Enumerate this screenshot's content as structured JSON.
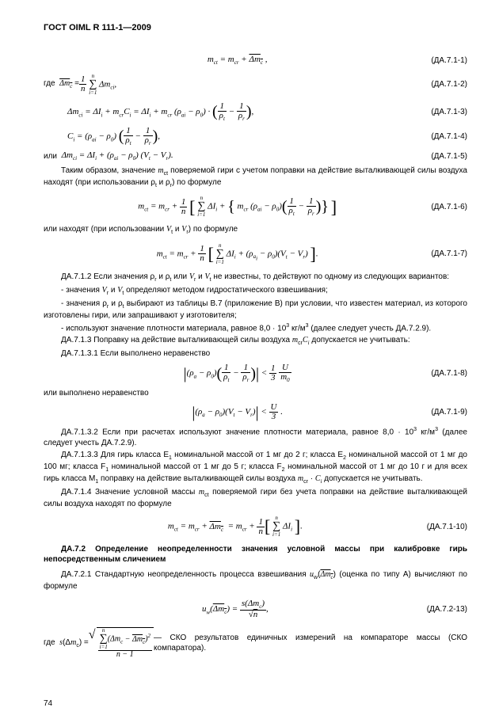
{
  "header": "ГОСТ OIML R 111-1—2009",
  "footer": "74",
  "eq": {
    "e1": {
      "f": "m<sub>ct</sub> = m<sub>cr</sub> + <span class='ovl'>Δm<sub>c</sub></span> ,",
      "t": "(ДА.7.1-1)"
    },
    "e2": {
      "lead": "где&nbsp;&nbsp;<span class='it'><span class='ovl'>Δm<sub>c</sub></span></span> = ",
      "f": "<span class='frac'><span class='n'>1</span><span class='d'>n</span></span> <span class='sumfrac'><span class='top'>n</span><span class='mid'>∑</span><span class='bot'>i=1</span></span> Δm<sub>ci</sub>,",
      "t": "(ДА.7.1-2)"
    },
    "e3": {
      "f": "Δm<sub>ci</sub> = ΔI<sub>i</sub> + m<sub>cr</sub>C<sub>i</sub> = ΔI<sub>i</sub> + m<sub>cr</sub> (ρ<sub>ai</sub> − ρ<sub>0</sub>) · <span class='big'>(</span><span class='frac'><span class='n'>1</span><span class='d'>ρ<sub>t</sub></span></span> − <span class='frac'><span class='n'>1</span><span class='d'>ρ<sub>r</sub></span></span><span class='big'>)</span>,",
      "t": "(ДА.7.1-3)"
    },
    "e4": {
      "f": "C<sub>i</sub> = (ρ<sub>ai</sub> − ρ<sub>0</sub>) <span class='big'>(</span><span class='frac'><span class='n'>1</span><span class='d'>ρ<sub>t</sub></span></span> − <span class='frac'><span class='n'>1</span><span class='d'>ρ<sub>r</sub></span></span><span class='big'>)</span>,",
      "t": "(ДА.7.1-4)"
    },
    "e5": {
      "lead": "или&nbsp;&nbsp;",
      "f": "Δm<sub>ci</sub> = ΔI<sub>i</sub> + (ρ<sub>ai</sub> − ρ<sub>0</sub>) (V<sub>t</sub> − V<sub>r</sub>).",
      "t": "(ДА.7.1-5)"
    },
    "e6": {
      "f": "m<sub>ct</sub> = m<sub>cr</sub> + <span class='frac'><span class='n'>1</span><span class='d'>n</span></span> <span class='brk-l'>[</span> <span class='sumfrac'><span class='top'>n</span><span class='mid'>∑</span><span class='bot'>i=1</span></span> ΔI<sub>i</sub> + <span class='big'>{</span> m<sub>cr</sub> (ρ<sub>ai</sub> − ρ<sub>0</sub>)<span class='big'>(</span><span class='frac'><span class='n'>1</span><span class='d'>ρ<sub>t</sub></span></span> − <span class='frac'><span class='n'>1</span><span class='d'>ρ<sub>r</sub></span></span><span class='big'>)</span><span class='big'>}</span> <span class='brk-r'>]</span>",
      "t": "(ДА.7.1-6)"
    },
    "e7": {
      "f": "m<sub>ct</sub> = m<sub>cr</sub> + <span class='frac'><span class='n'>1</span><span class='d'>n</span></span> <span class='brk-l'>[</span> <span class='sumfrac'><span class='top'>n</span><span class='mid'>∑</span><span class='bot'>i=1</span></span> ΔI<sub>i</sub> + (ρ<sub>a<sub>i</sub></sub> − ρ<sub>0</sub>)(V<sub>t</sub> − V<sub>r</sub>) <span class='brk-r'>]</span>.",
      "t": "(ДА.7.1-7)"
    },
    "e8": {
      "f": "<span class='big'>|</span>(ρ<sub>a</sub> − ρ<sub>0</sub>)<span class='big'>(</span><span class='frac'><span class='n'>1</span><span class='d'>ρ<sub>t</sub></span></span> − <span class='frac'><span class='n'>1</span><span class='d'>ρ<sub>r</sub></span></span><span class='big'>)</span><span class='big'>|</span> &lt; <span class='frac'><span class='n'>1</span><span class='d'>3</span></span> <span class='frac'><span class='n'>U</span><span class='d'>m<sub>0</sub></span></span>",
      "t": "(ДА.7.1-8)"
    },
    "e9": {
      "f": "<span class='big'>|</span>(ρ<sub>a</sub> − ρ<sub>0</sub>)(V<sub>t</sub> − V<sub>r</sub>)<span class='big'>|</span> &lt; <span class='frac'><span class='n'>U</span><span class='d'>3</span></span> .",
      "t": "(ДА.7.1-9)"
    },
    "e10": {
      "f": "m<sub>ct</sub> = m<sub>cr</sub> + <span class='ovl'>Δm<sub>c</sub></span>&nbsp; = m<sub>cr</sub> + <span class='frac'><span class='n'>1</span><span class='d'>n</span></span><span class='brk-l'>[</span> <span class='sumfrac'><span class='top'>n</span><span class='mid'>∑</span><span class='bot'>i=1</span></span> ΔI<sub>i</sub> <span class='brk-r'>]</span>.",
      "t": "(ДА.7.1-10)"
    },
    "e11": {
      "f": "u<sub>w</sub>(<span class='ovl'>Δm<sub>c</sub></span>) = <span class='frac'><span class='n'>s(Δm<sub>c</sub>)</span><span class='d'>√<span style='text-decoration:overline'>n</span></span></span>,",
      "t": "(ДА.7.2-13)"
    }
  },
  "p": {
    "p1": "Таким образом, значение <span class='it'>m</span><sub>ct</sub> поверяемой гири с учетом поправки на действие выталкивающей силы воздуха находят (при использовании ρ<sub>t</sub> и ρ<sub>r</sub>) по формуле",
    "p2": "или находят (при использовании <span class='it'>V</span><sub>t</sub> и <span class='it'>V</span><sub>r</sub>) по формуле",
    "p3": "ДА.7.1.2 Если значения ρ<sub>r</sub> и ρ<sub>t</sub> или <span class='it'>V</span><sub>r</sub> и <span class='it'>V</span><sub>t</sub> не известны, то действуют по одному из следующих вариантов:",
    "p4": "- значения <span class='it'>V</span><sub>r</sub> и <span class='it'>V</span><sub>t</sub> определяют методом гидростатического взвешивания;",
    "p5": "- значения ρ<sub>r</sub> и ρ<sub>t</sub> выбирают из таблицы В.7 (приложение В) при условии, что известен материал, из которого изготовлены гири, или запрашивают у изготовителя;",
    "p6": "- используют значение плотности материала, равное 8,0 · 10<sup>3</sup> кг/м<sup>3</sup> (далее следует учесть ДА.7.2.9).",
    "p7": "ДА.7.1.3 Поправку на действие выталкивающей силы воздуха <span class='it'>m</span><sub>cr</sub><span class='it'>C<sub>i</sub></span>  допускается не учитывать:",
    "p8": "ДА.7.1.3.1 Если выполнено неравенство",
    "p9": "или выполнено неравенство",
    "p10": "ДА.7.1.3.2 Если при расчетах используют значение плотности материала, равное 8,0 · 10<sup>3</sup> кг/м<sup>3</sup> (далее следует учесть ДА.7.2.9).",
    "p11": "ДА.7.1.3.3 Для гирь класса Е<sub>1</sub> номинальной массой от 1 мг до 2 г; класса Е<sub>2</sub>  номинальной массой от 1 мг до 100 мг; класса F<sub>1</sub> номинальной массой от 1 мг до 5 г; класса F<sub>2</sub>  номинальной массой от 1 мг до 10 г и для всех гирь класса М<sub>1</sub> поправку на действие выталкивающей силы воздуха <span class='it'>m</span><sub>cr</sub> · <span class='it'>C<sub>i</sub></span>  допускается не учитывать.",
    "p12": "ДА.7.1.4 Значение условной массы <span class='it'>m</span><sub>ct</sub> поверяемой гири без учета поправки на действие выталкивающей силы воздуха находят по формуле",
    "p13": "ДА.7.2 Определение неопределенности значения условной массы при калибровке гирь непосредственным сличением",
    "p14": "ДА.7.2.1 Стандартную неопределенность процесса взвешивания <span class='it'>u</span><sub>w</sub>(<span class='it ovl'>Δm<sub>c</sub></span>)  (оценка по типу А) вычисляют по формуле",
    "p15lead": "где&nbsp;&nbsp;<span class='it'>s</span>(Δ<span class='it'>m</span><sub>c</sub>) = ",
    "p15tail": " — СКО результатов единичных измерений на компараторе массы (СКО компаратора)."
  }
}
